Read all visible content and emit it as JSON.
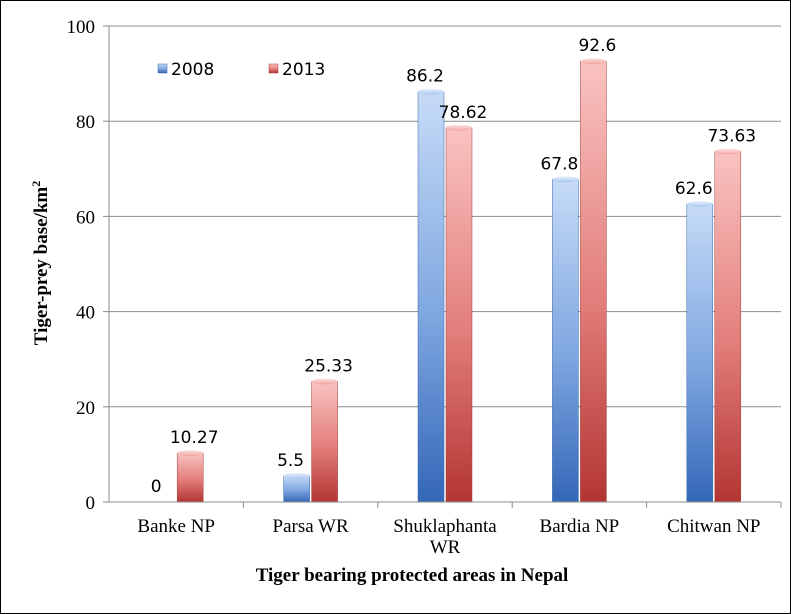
{
  "chart_data": {
    "type": "bar",
    "title": "",
    "xlabel": "Tiger bearing protected areas in Nepal",
    "ylabel_main": "Tiger-prey base/km",
    "ylabel_sup": "2",
    "categories": [
      [
        "Banke NP"
      ],
      [
        "Parsa WR"
      ],
      [
        "Shuklaphanta",
        "WR"
      ],
      [
        "Bardia NP"
      ],
      [
        "Chitwan NP"
      ]
    ],
    "series": [
      {
        "name": "2008",
        "values": [
          0,
          5.5,
          86.2,
          67.8,
          62.6
        ],
        "labels": [
          "0",
          "5.5",
          "86.2",
          "67.8",
          "62.6"
        ]
      },
      {
        "name": "2013",
        "values": [
          10.27,
          25.33,
          78.62,
          92.6,
          73.63
        ],
        "labels": [
          "10.27",
          "25.33",
          "78.62",
          "92.6",
          "73.63"
        ]
      }
    ],
    "ylim": [
      0,
      100
    ],
    "yticks": [
      0,
      20,
      40,
      60,
      80,
      100
    ],
    "grid": true,
    "legend": "top-left",
    "colors": {
      "2008": "#4f81bd",
      "2013": "#c0504d"
    }
  }
}
